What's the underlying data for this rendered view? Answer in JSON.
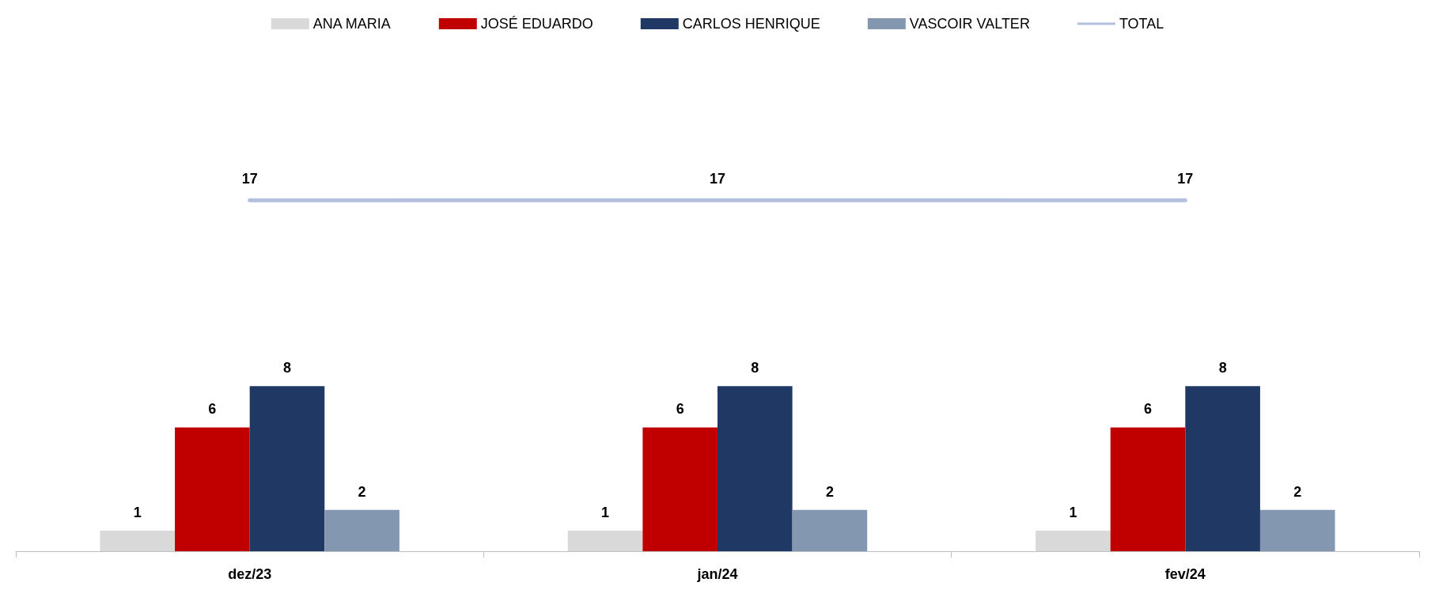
{
  "chart_data": {
    "type": "bar",
    "categories": [
      "dez/23",
      "jan/24",
      "fev/24"
    ],
    "series": [
      {
        "name": "ANA MARIA",
        "color": "#d9d9d9",
        "values": [
          1,
          1,
          1
        ]
      },
      {
        "name": "JOSÉ EDUARDO",
        "color": "#c00000",
        "values": [
          6,
          6,
          6
        ]
      },
      {
        "name": "CARLOS HENRIQUE",
        "color": "#203864",
        "values": [
          8,
          8,
          8
        ]
      },
      {
        "name": "VASCOIR VALTER",
        "color": "#8497b0",
        "values": [
          2,
          2,
          2
        ]
      },
      {
        "name": "TOTAL",
        "type": "line",
        "color": "#b4c0e0",
        "values": [
          17,
          17,
          17
        ]
      }
    ],
    "data_labels": true,
    "legend": "top",
    "grid": false,
    "marker": "none",
    "line_style": "solid",
    "tick_labels": "x"
  }
}
